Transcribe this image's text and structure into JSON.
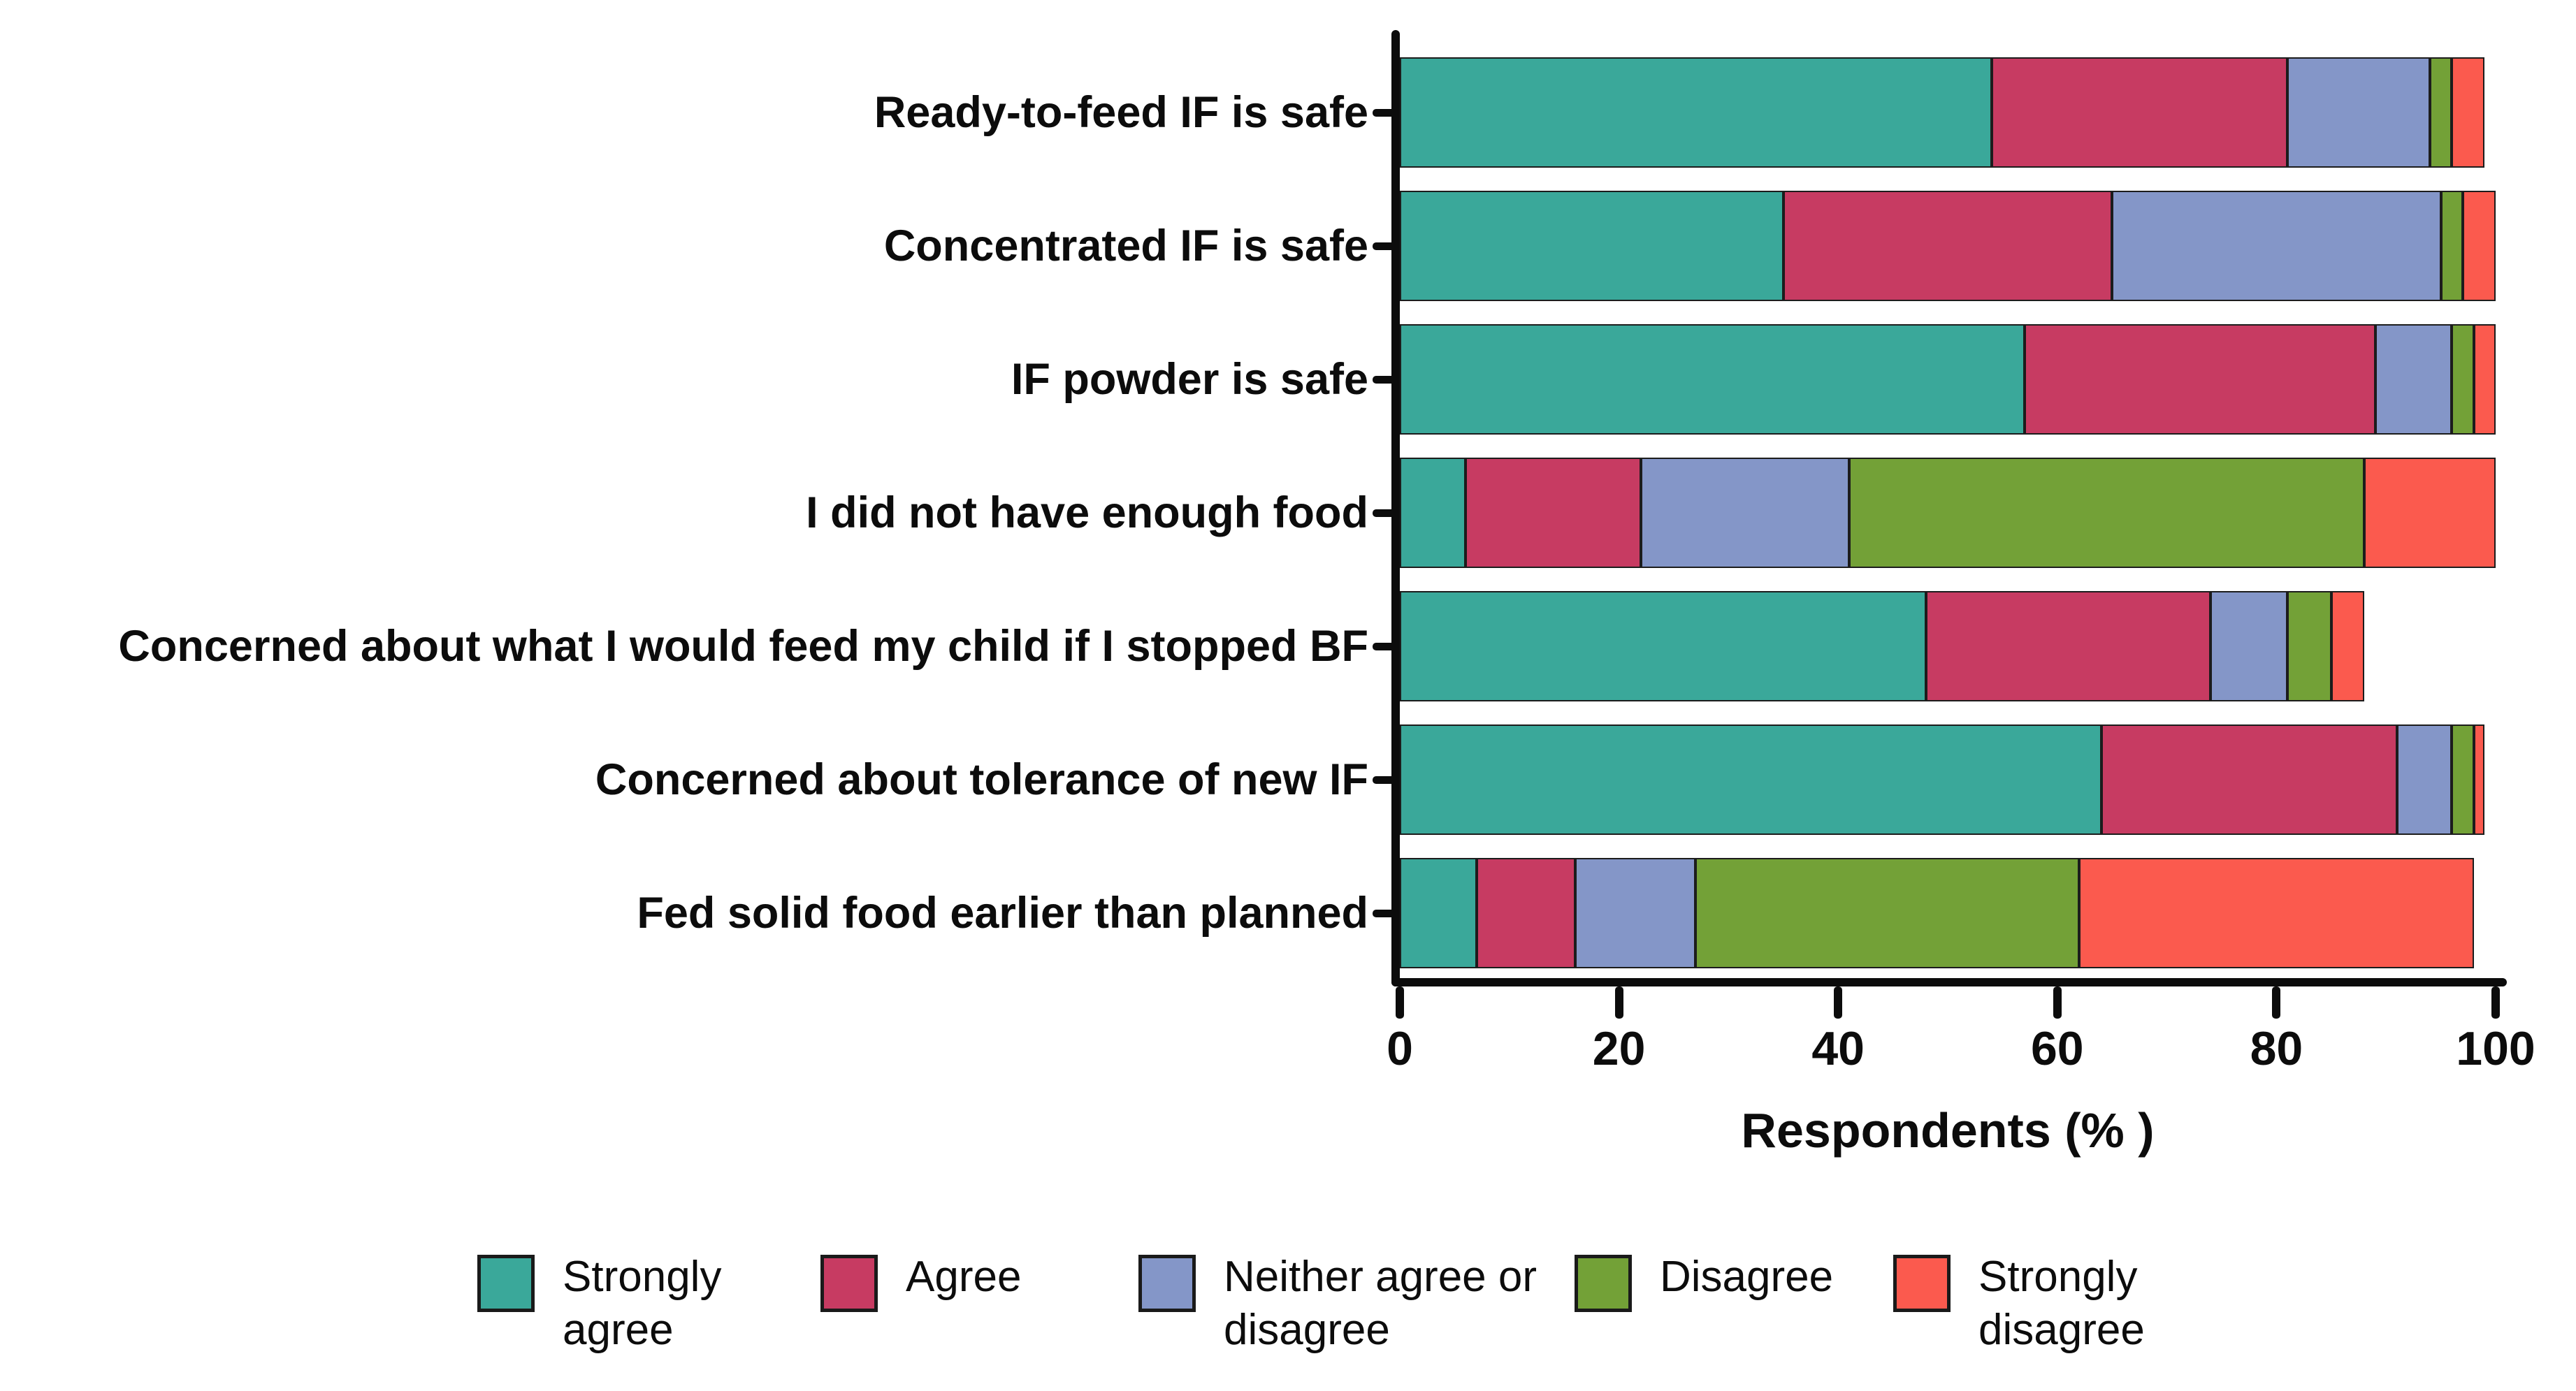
{
  "chart_data": {
    "type": "bar",
    "variant": "horizontal-stacked",
    "title": "",
    "xlabel": "Respondents (% )",
    "ylabel": "",
    "xlim": [
      0,
      100
    ],
    "xticks": [
      0,
      20,
      40,
      60,
      80,
      100
    ],
    "grid": false,
    "legend_position": "bottom",
    "axis_color": "#0c0c0c",
    "categories": [
      "Ready-to-feed IF is safe",
      "Concentrated IF is safe",
      "IF powder is safe",
      "I did not have enough food",
      "Concerned about what I would feed my child if I stopped BF",
      "Concerned about tolerance of new IF",
      "Fed solid food earlier than planned"
    ],
    "series": [
      {
        "name": "Strongly agree",
        "color": "#3aa89a",
        "values": [
          54,
          35,
          57,
          6,
          48,
          64,
          7
        ]
      },
      {
        "name": "Agree",
        "color": "#c73b62",
        "values": [
          27,
          30,
          32,
          16,
          26,
          27,
          9
        ]
      },
      {
        "name": "Neither agree or disagree",
        "color": "#8496c8",
        "values": [
          13,
          30,
          7,
          19,
          7,
          5,
          11
        ]
      },
      {
        "name": "Disagree",
        "color": "#73a137",
        "values": [
          2,
          2,
          2,
          47,
          4,
          2,
          35
        ]
      },
      {
        "name": "Strongly disagree",
        "color": "#fb5a4e",
        "values": [
          3,
          3,
          2,
          12,
          3,
          1,
          36
        ]
      }
    ],
    "bar_totals_pct": [
      99,
      100,
      100,
      100,
      88,
      99,
      98
    ]
  }
}
